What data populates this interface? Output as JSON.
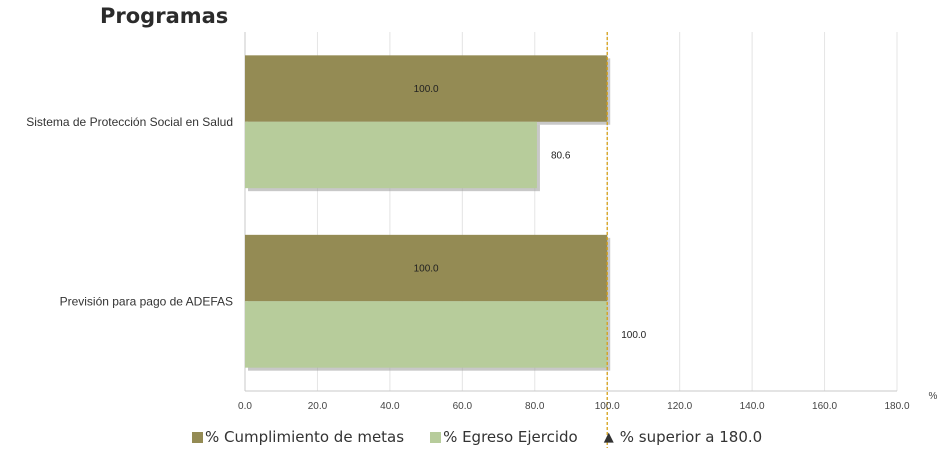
{
  "chart_data": {
    "type": "bar",
    "orientation": "horizontal",
    "title": "Programas",
    "categories": [
      "Sistema de Protección Social en Salud",
      "Previsión para pago de ADEFAS"
    ],
    "series": [
      {
        "name": "% Cumplimiento de metas",
        "values": [
          100.0,
          100.0
        ],
        "color": "#948b54"
      },
      {
        "name": "% Egreso Ejercido",
        "values": [
          80.6,
          100.0
        ],
        "color": "#b7cc9b"
      }
    ],
    "data_labels": [
      [
        "100.0",
        "100.0"
      ],
      [
        "80.6",
        "100.0"
      ]
    ],
    "xlim": [
      0,
      180
    ],
    "xticks": [
      "0.0",
      "20.0",
      "40.0",
      "60.0",
      "80.0",
      "100.0",
      "120.0",
      "140.0",
      "160.0",
      "180.0"
    ],
    "xunit": "%",
    "reference_line": {
      "value": 100,
      "color": "#d4a017",
      "style": "dashed"
    },
    "grid": true,
    "legend_position": "bottom",
    "legend_extra": {
      "marker": "▲",
      "label": "% superior a 180.0"
    }
  }
}
